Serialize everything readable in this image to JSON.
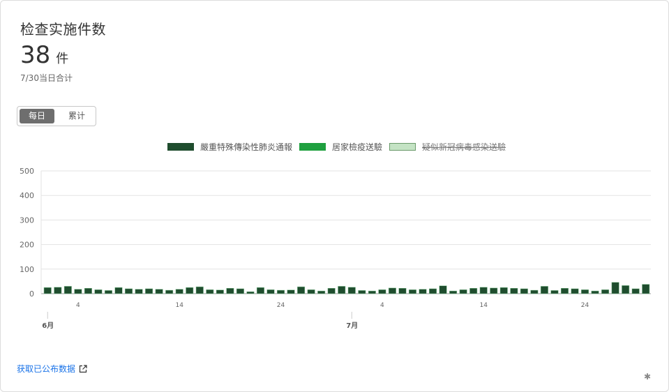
{
  "card": {
    "title": "检查实施件数",
    "value": "38",
    "unit": "件",
    "subtitle": "7/30当日合计"
  },
  "toggle": {
    "daily": "每日",
    "cumulative": "累计"
  },
  "legend": [
    {
      "label": "嚴重特殊傳染性肺炎通報",
      "color": "#1f4d2e",
      "enabled": true
    },
    {
      "label": "居家檢疫送驗",
      "color": "#1fa03f",
      "enabled": true
    },
    {
      "label": "疑似新冠病毒感染送驗",
      "color": "#c4e3c4",
      "enabled": false
    }
  ],
  "link": {
    "label": "获取已公布数据",
    "icon": "external-link-icon"
  },
  "chart_data": {
    "type": "bar",
    "y_ticks": [
      "0",
      "100",
      "200",
      "300",
      "400",
      "500"
    ],
    "ylim": [
      0,
      500
    ],
    "grid": true,
    "x_ticks": [
      "4",
      "14",
      "24",
      "4",
      "14",
      "24"
    ],
    "months": [
      "6月",
      "7月"
    ],
    "dates": [
      "6/1",
      "6/2",
      "6/3",
      "6/4",
      "6/5",
      "6/6",
      "6/7",
      "6/8",
      "6/9",
      "6/10",
      "6/11",
      "6/12",
      "6/13",
      "6/14",
      "6/15",
      "6/16",
      "6/17",
      "6/18",
      "6/19",
      "6/20",
      "6/21",
      "6/22",
      "6/23",
      "6/24",
      "6/25",
      "6/26",
      "6/27",
      "6/28",
      "6/29",
      "6/30",
      "7/1",
      "7/2",
      "7/3",
      "7/4",
      "7/5",
      "7/6",
      "7/7",
      "7/8",
      "7/9",
      "7/10",
      "7/11",
      "7/12",
      "7/13",
      "7/14",
      "7/15",
      "7/16",
      "7/17",
      "7/18",
      "7/19",
      "7/20",
      "7/21",
      "7/22",
      "7/23",
      "7/24",
      "7/25",
      "7/26",
      "7/27",
      "7/28",
      "7/29",
      "7/30"
    ],
    "series": [
      {
        "name": "嚴重特殊傳染性肺炎通報",
        "color": "#1f4d2e",
        "values": [
          25,
          26,
          30,
          18,
          22,
          16,
          13,
          25,
          20,
          18,
          20,
          18,
          14,
          18,
          25,
          28,
          16,
          15,
          22,
          20,
          8,
          25,
          16,
          14,
          15,
          28,
          16,
          11,
          22,
          30,
          26,
          13,
          11,
          16,
          23,
          22,
          16,
          18,
          20,
          32,
          11,
          16,
          22,
          26,
          23,
          25,
          22,
          20,
          14,
          30,
          13,
          22,
          20,
          16,
          11,
          16,
          46,
          33,
          20,
          38
        ]
      }
    ]
  }
}
